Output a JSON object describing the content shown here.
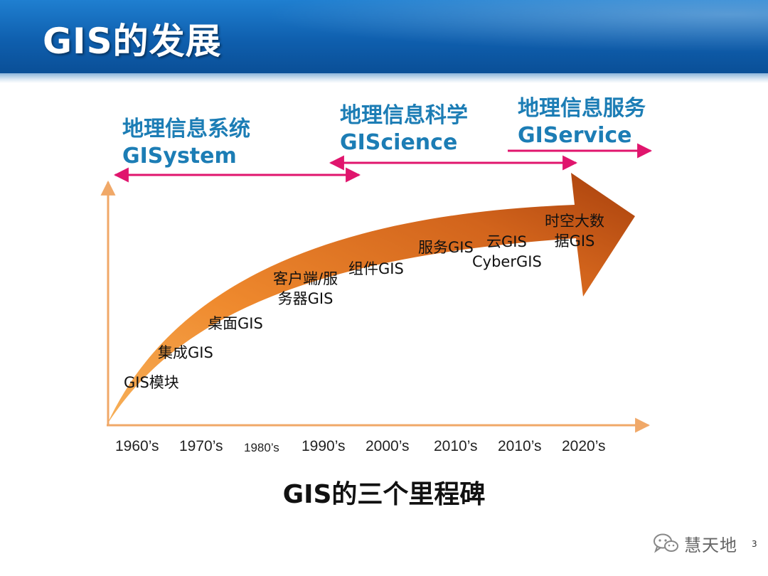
{
  "title": "GIS的发展",
  "eras": [
    {
      "cn": "地理信息系统",
      "en": "GISystem"
    },
    {
      "cn": "地理信息科学",
      "en": "GIScience"
    },
    {
      "cn": "地理信息服务",
      "en": "GIService"
    }
  ],
  "milestones": [
    "GIS模块",
    "集成GIS",
    "桌面GIS",
    "客户端/服\n务器GIS",
    "组件GIS",
    "服务GIS",
    "云GIS",
    "CyberGIS",
    "时空大数\n据GIS"
  ],
  "timeline": [
    "1960’s",
    "1970’s",
    "1980’s",
    "1990’s",
    "2000’s",
    "2010’s",
    "2010’s",
    "2020’s"
  ],
  "caption": "GIS的三个里程碑",
  "watermark": "慧天地",
  "page_number": "3",
  "colors": {
    "header": "#0f5fae",
    "era_text": "#1c7db5",
    "era_arrow": "#e0156d",
    "big_arrow_light": "#f5a24a",
    "big_arrow_dark": "#a8400d",
    "axis": "#f0a868"
  },
  "icons": [
    "wechat-icon"
  ]
}
